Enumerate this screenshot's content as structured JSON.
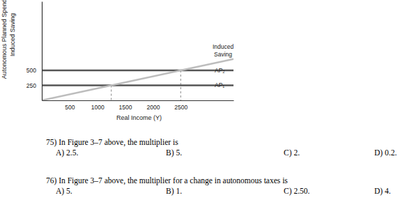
{
  "chart_data": {
    "type": "line",
    "x_label": "Real Income (Y)",
    "y_label": [
      "Autonomous Planned Spending",
      "Induced Saving"
    ],
    "x": [
      0,
      1250,
      2500,
      3450
    ],
    "series": [
      {
        "name": "AP₁",
        "color": "#555555",
        "values": [
          250,
          250,
          250,
          250
        ]
      },
      {
        "name": "AP₂",
        "color": "#555555",
        "values": [
          500,
          500,
          500,
          500
        ]
      },
      {
        "name": "Induced Saving",
        "color": "#bdbdbd",
        "values": [
          0,
          250,
          500,
          690
        ]
      }
    ],
    "drop_lines": [
      {
        "x": 1250,
        "y": 250
      },
      {
        "x": 2500,
        "y": 500
      }
    ],
    "xlim": [
      0,
      3450
    ],
    "xticks": [
      500,
      1000,
      1500,
      2000,
      2500
    ],
    "ylim": [
      0,
      1650
    ],
    "yticks": [
      250,
      500
    ],
    "grid": false
  },
  "questions": [
    {
      "text": "75) In Figure 3–7 above, the multiplier is",
      "options": [
        "A) 2.5.",
        "B) 5.",
        "C) 2.",
        "D) 0.2."
      ]
    },
    {
      "text": "76) In Figure 3–7 above, the multiplier for a change in autonomous taxes is",
      "options": [
        "A) 5.",
        "B) 1.",
        "C) 2.50.",
        "D) 4."
      ]
    }
  ]
}
